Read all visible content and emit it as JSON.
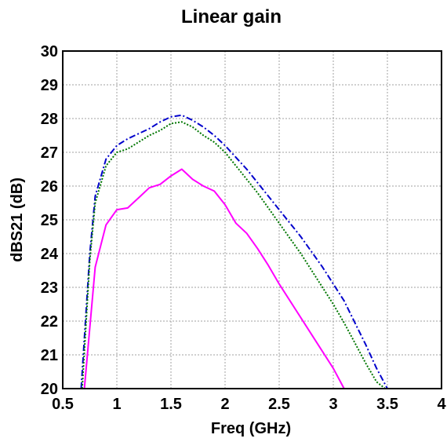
{
  "chart_data": {
    "type": "line",
    "title": "Linear gain",
    "xlabel": "Freq (GHz)",
    "ylabel": "dBS21 (dB)",
    "xlim": [
      0.5,
      4
    ],
    "ylim": [
      20,
      30
    ],
    "xticks": [
      "0.5",
      "1",
      "1.5",
      "2",
      "2.5",
      "3",
      "3.5",
      "4"
    ],
    "yticks": [
      "20",
      "21",
      "22",
      "23",
      "24",
      "25",
      "26",
      "27",
      "28",
      "29",
      "30"
    ],
    "grid": true,
    "legend": "none",
    "series": [
      {
        "color": "#0000cc",
        "style": "dash-dot",
        "x": [
          0.67,
          0.75,
          0.8,
          0.9,
          1.0,
          1.1,
          1.2,
          1.3,
          1.4,
          1.5,
          1.6,
          1.7,
          1.8,
          1.9,
          2.0,
          2.1,
          2.2,
          2.3,
          2.4,
          2.5,
          2.6,
          2.7,
          2.8,
          2.9,
          3.0,
          3.1,
          3.2,
          3.3,
          3.4,
          3.5
        ],
        "y": [
          20.0,
          24.0,
          25.7,
          26.8,
          27.2,
          27.4,
          27.55,
          27.7,
          27.9,
          28.05,
          28.1,
          27.95,
          27.75,
          27.5,
          27.2,
          26.85,
          26.5,
          26.1,
          25.7,
          25.3,
          24.9,
          24.5,
          24.05,
          23.6,
          23.1,
          22.6,
          21.95,
          21.3,
          20.6,
          20.0
        ]
      },
      {
        "color": "#007700",
        "style": "dotted",
        "x": [
          0.68,
          0.75,
          0.8,
          0.9,
          1.0,
          1.1,
          1.2,
          1.3,
          1.4,
          1.5,
          1.6,
          1.7,
          1.8,
          1.9,
          2.0,
          2.1,
          2.2,
          2.3,
          2.4,
          2.5,
          2.6,
          2.7,
          2.8,
          2.9,
          3.0,
          3.1,
          3.2,
          3.3,
          3.4,
          3.48
        ],
        "y": [
          20.0,
          23.8,
          25.5,
          26.6,
          27.0,
          27.1,
          27.3,
          27.5,
          27.65,
          27.85,
          27.9,
          27.75,
          27.5,
          27.3,
          27.0,
          26.6,
          26.2,
          25.8,
          25.35,
          24.9,
          24.45,
          24.0,
          23.5,
          23.0,
          22.5,
          21.95,
          21.35,
          20.75,
          20.2,
          20.0
        ]
      },
      {
        "color": "#ff00ff",
        "style": "solid",
        "x": [
          0.7,
          0.8,
          0.9,
          1.0,
          1.1,
          1.2,
          1.3,
          1.4,
          1.5,
          1.6,
          1.7,
          1.8,
          1.9,
          2.0,
          2.1,
          2.2,
          2.3,
          2.4,
          2.5,
          2.6,
          2.7,
          2.8,
          2.9,
          3.0,
          3.1
        ],
        "y": [
          20.0,
          23.6,
          24.85,
          25.3,
          25.35,
          25.65,
          25.95,
          26.05,
          26.3,
          26.5,
          26.2,
          26.0,
          25.85,
          25.45,
          24.9,
          24.6,
          24.15,
          23.65,
          23.1,
          22.6,
          22.1,
          21.6,
          21.1,
          20.6,
          20.0
        ]
      }
    ]
  }
}
